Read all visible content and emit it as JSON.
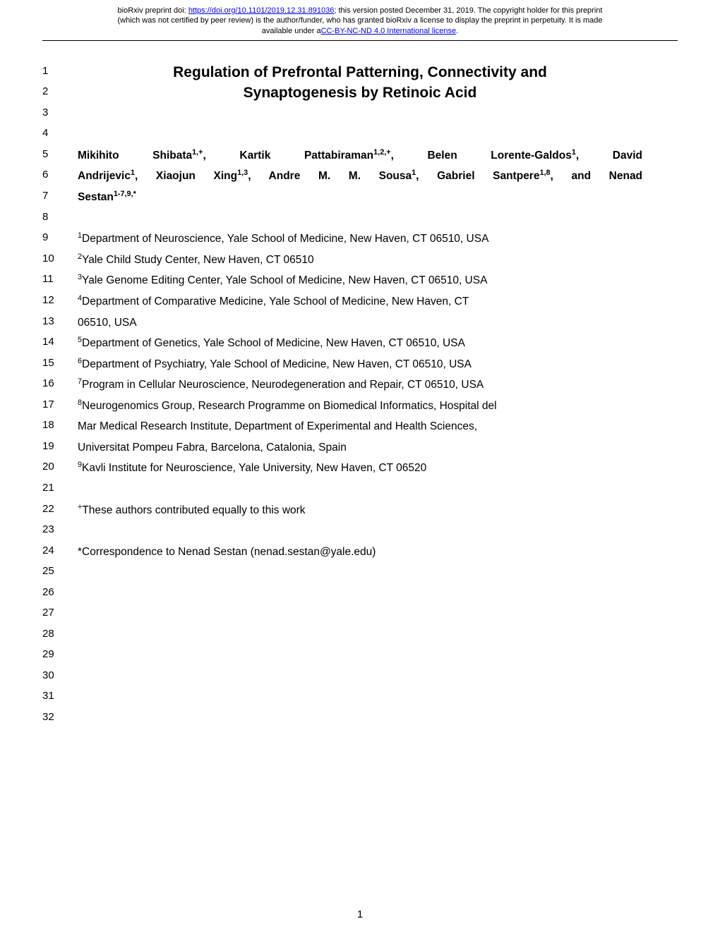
{
  "preprint_header": {
    "line1_prefix": "bioRxiv preprint doi: ",
    "doi_url": "https://doi.org/10.1101/2019.12.31.891036",
    "line1_suffix": "; this version posted December 31, 2019. The copyright holder for this preprint",
    "line2": "(which was not certified by peer review) is the author/funder, who has granted bioRxiv a license to display the preprint in perpetuity. It is made",
    "line3_prefix": "available under a",
    "license_text": "CC-BY-NC-ND 4.0 International license",
    "line3_suffix": "."
  },
  "title": {
    "line1": "Regulation of Prefrontal Patterning, Connectivity and",
    "line2": "Synaptogenesis by Retinoic Acid"
  },
  "authors": {
    "a1_name": "Mikihito Shibata",
    "a1_sup": "1,+",
    "a2_name": "Kartik Pattabiraman",
    "a2_sup": "1,2,+",
    "a3_name": "Belen Lorente-Galdos",
    "a3_sup": "1",
    "a4_name": "David",
    "a5_name": "Andrijevic",
    "a5_sup": "1",
    "a6_name": "Xiaojun Xing",
    "a6_sup": "1,3",
    "a7_name": "Andre M. M. Sousa",
    "a7_sup": "1",
    "a8_name": "Gabriel Santpere",
    "a8_sup": "1,8",
    "a9_name": "and Nenad",
    "a10_name": "Sestan",
    "a10_sup": "1-7,9,*"
  },
  "affiliations": {
    "aff1_sup": "1",
    "aff1_text": "Department of Neuroscience, Yale School of Medicine, New Haven, CT 06510, USA",
    "aff2_sup": "2",
    "aff2_text": "Yale Child Study Center, New Haven, CT 06510",
    "aff3_sup": "3",
    "aff3_text": "Yale Genome Editing Center, Yale School of Medicine, New Haven, CT 06510, USA",
    "aff4_sup": "4",
    "aff4_text_a": "Department of Comparative Medicine, Yale School of Medicine, New Haven, CT",
    "aff4_text_b": "06510, USA",
    "aff5_sup": "5",
    "aff5_text": "Department of Genetics, Yale School of Medicine, New Haven, CT 06510, USA",
    "aff6_sup": "6",
    "aff6_text": "Department of Psychiatry, Yale School of Medicine, New Haven, CT 06510, USA",
    "aff7_sup": "7",
    "aff7_text": "Program in Cellular Neuroscience, Neurodegeneration and Repair, CT 06510, USA",
    "aff8_sup": "8",
    "aff8_text_a": "Neurogenomics Group, Research Programme on Biomedical Informatics, Hospital del",
    "aff8_text_b": "Mar Medical Research Institute, Department of Experimental and Health Sciences,",
    "aff8_text_c": "Universitat Pompeu Fabra, Barcelona, Catalonia, Spain",
    "aff9_sup": "9",
    "aff9_text": "Kavli Institute for Neuroscience, Yale University, New Haven, CT 06520"
  },
  "notes": {
    "equal_sup": "+",
    "equal_text": "These authors contributed equally to this work",
    "corr_text": "*Correspondence to Nenad Sestan (nenad.sestan@yale.edu)"
  },
  "line_numbers": [
    "1",
    "2",
    "3",
    "4",
    "5",
    "6",
    "7",
    "8",
    "9",
    "10",
    "11",
    "12",
    "13",
    "14",
    "15",
    "16",
    "17",
    "18",
    "19",
    "20",
    "21",
    "22",
    "23",
    "24",
    "25",
    "26",
    "27",
    "28",
    "29",
    "30",
    "31",
    "32"
  ],
  "page_number": "1",
  "colors": {
    "text": "#000000",
    "link": "#0000ee",
    "background": "#ffffff"
  },
  "typography": {
    "body_fontsize": 15.5,
    "title_fontsize": 21,
    "header_fontsize": 11,
    "linenum_fontsize": 15
  }
}
